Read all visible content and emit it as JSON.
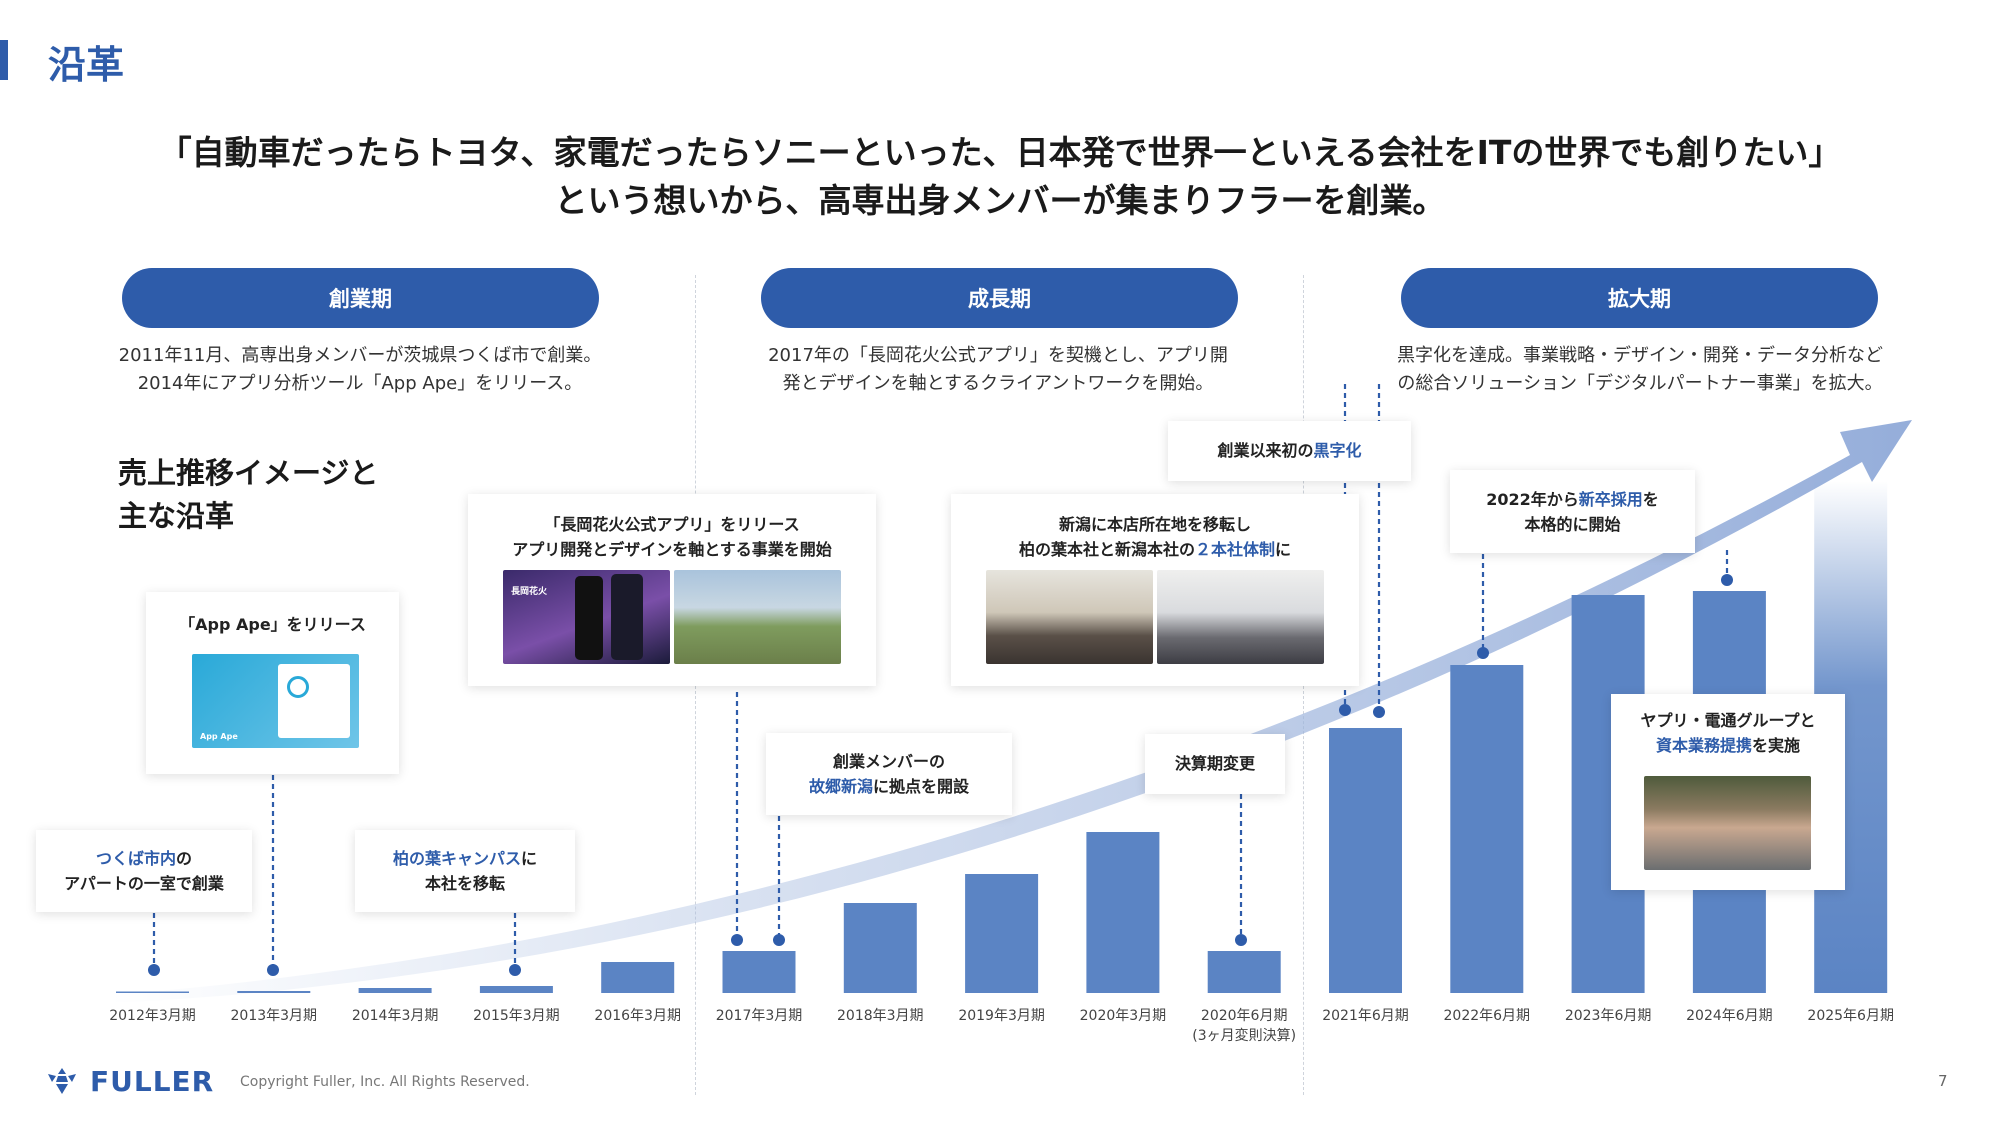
{
  "header": {
    "title": "沿革"
  },
  "headline": {
    "line1": "「自動車だったらトヨタ、家電だったらソニーといった、日本発で世界一といえる会社をITの世界でも創りたい」",
    "line2": "という想いから、高専出身メンバーが集まりフラーを創業。"
  },
  "phases": [
    {
      "label": "創業期",
      "desc": [
        "2011年11月、高専出身メンバーが茨城県つくば市で創業。",
        "2014年にアプリ分析ツール「App Ape」をリリース。"
      ]
    },
    {
      "label": "成長期",
      "desc": [
        "2017年の「長岡花火公式アプリ」を契機とし、アプリ開",
        "発とデザインを軸とするクライアントワークを開始。"
      ]
    },
    {
      "label": "拡大期",
      "desc": [
        "黒字化を達成。事業戦略・デザイン・開発・データ分析など",
        "の総合ソリューション「デジタルパートナー事業」を拡大。"
      ]
    }
  ],
  "section_title": [
    "売上推移イメージと",
    "主な沿革"
  ],
  "events": {
    "tsukuba": {
      "hl": "つくば市内",
      "t1": "の",
      "t2": "アパートの一室で創業"
    },
    "appape": {
      "text": "「App Ape」をリリース",
      "app_name": "App Ape"
    },
    "kashiwa": {
      "hl": "柏の葉キャンパス",
      "t1": "に",
      "t2": "本社を移転"
    },
    "nagaoka": {
      "l1": "「長岡花火公式アプリ」をリリース",
      "l2": "アプリ開発とデザインを軸とする事業を開始",
      "app_caption": "長岡花火"
    },
    "niigata_base": {
      "l1": "創業メンバーの",
      "hl": "故郷新潟",
      "t2": "に拠点を開設"
    },
    "hq_move": {
      "l1": "新潟に本店所在地を移転し",
      "t1": "柏の葉本社と新潟本社の",
      "hl": "２本社体制",
      "t2": "に"
    },
    "fiscal": {
      "text": "決算期変更"
    },
    "profit": {
      "t1": "創業以来初の",
      "hl": "黒字化"
    },
    "newgrad": {
      "t1": "2022年から",
      "hl": "新卒採用",
      "t2": "を",
      "l2": "本格的に開始"
    },
    "yappli": {
      "l1": "ヤプリ・電通グループと",
      "hl": "資本業務提携",
      "t2": "を実施"
    }
  },
  "chart_data": {
    "type": "bar",
    "title": "",
    "xlabel": "",
    "ylabel": "",
    "note": "売上推移イメージ (no numeric axis shown; relative image values)",
    "categories": [
      "2012年3月期",
      "2013年3月期",
      "2014年3月期",
      "2015年3月期",
      "2016年3月期",
      "2017年3月期",
      "2018年3月期",
      "2019年3月期",
      "2020年3月期",
      "2020年6月期",
      "2021年6月期",
      "2022年6月期",
      "2023年6月期",
      "2024年6月期",
      "2025年6月期"
    ],
    "category_notes": {
      "2020年6月期": "(3ヶ月変則決算)"
    },
    "values": [
      0.5,
      2,
      5,
      7,
      31,
      42,
      90,
      119,
      161,
      42,
      265,
      328,
      398,
      402,
      512
    ],
    "color": "#5b84c4"
  },
  "footer": {
    "brand": "FULLER",
    "copyright": "Copyright Fuller, Inc. All Rights Reserved.",
    "page": "7"
  },
  "colors": {
    "accent": "#2e5caa",
    "bar": "#5b84c4",
    "arrow": "#a9bde0"
  }
}
